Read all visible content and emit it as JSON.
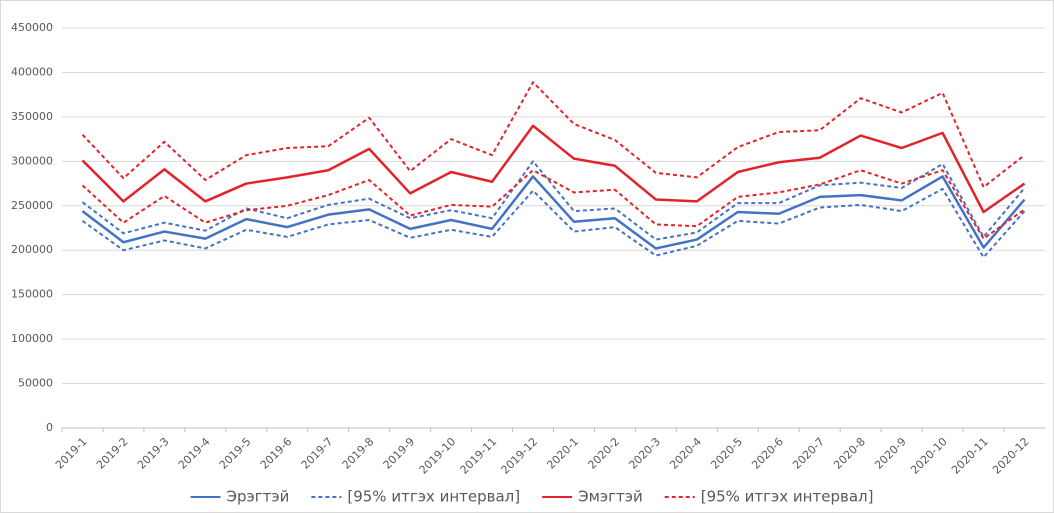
{
  "chart_data": {
    "type": "line",
    "categories": [
      "2019-1",
      "2019-2",
      "2019-3",
      "2019-4",
      "2019-5",
      "2019-6",
      "2019-7",
      "2019-8",
      "2019-9",
      "2019-10",
      "2019-11",
      "2019-12",
      "2020-1",
      "2020-2",
      "2020-3",
      "2020-4",
      "2020-5",
      "2020-6",
      "2020-7",
      "2020-8",
      "2020-9",
      "2020-10",
      "2020-11",
      "2020-12"
    ],
    "series": [
      {
        "name": "Эрэгтэй",
        "color": "#4472c4",
        "dashed": false,
        "values": [
          244000,
          209000,
          221000,
          213000,
          235000,
          226000,
          240000,
          246000,
          224000,
          234000,
          224000,
          283000,
          232000,
          236000,
          202000,
          212000,
          243000,
          241000,
          260000,
          262000,
          256000,
          283000,
          203000,
          257000
        ]
      },
      {
        "name": "[95% итгэх интервал]",
        "color": "#4472c4",
        "dashed": true,
        "upper": [
          254000,
          219000,
          231000,
          222000,
          247000,
          236000,
          251000,
          258000,
          236000,
          245000,
          236000,
          300000,
          244000,
          247000,
          212000,
          220000,
          253000,
          253000,
          273000,
          276000,
          270000,
          297000,
          215000,
          270000
        ],
        "lower": [
          233000,
          200000,
          211000,
          202000,
          223000,
          215000,
          229000,
          234000,
          214000,
          223000,
          215000,
          267000,
          221000,
          226000,
          194000,
          205000,
          233000,
          230000,
          248000,
          251000,
          244000,
          269000,
          192000,
          244000
        ]
      },
      {
        "name": "Эмэгтэй",
        "color": "#e3232b",
        "dashed": false,
        "values": [
          301000,
          255000,
          291000,
          255000,
          275000,
          282000,
          290000,
          314000,
          264000,
          288000,
          277000,
          340000,
          303000,
          295000,
          257000,
          255000,
          288000,
          299000,
          304000,
          329000,
          315000,
          332000,
          243000,
          275000
        ]
      },
      {
        "name": "[95% итгэх интервал]",
        "color": "#e3232b",
        "dashed": true,
        "upper": [
          330000,
          281000,
          322000,
          279000,
          307000,
          315000,
          317000,
          349000,
          289000,
          325000,
          307000,
          389000,
          342000,
          324000,
          287000,
          282000,
          316000,
          333000,
          335000,
          371000,
          355000,
          377000,
          271000,
          307000
        ],
        "lower": [
          273000,
          231000,
          261000,
          231000,
          245000,
          250000,
          262000,
          279000,
          239000,
          251000,
          249000,
          290000,
          265000,
          268000,
          229000,
          227000,
          260000,
          265000,
          274000,
          290000,
          275000,
          290000,
          213000,
          246000
        ]
      }
    ],
    "ylim": [
      0,
      450000
    ],
    "yticks": [
      0,
      50000,
      100000,
      150000,
      200000,
      250000,
      300000,
      350000,
      400000,
      450000
    ],
    "grid": true
  }
}
